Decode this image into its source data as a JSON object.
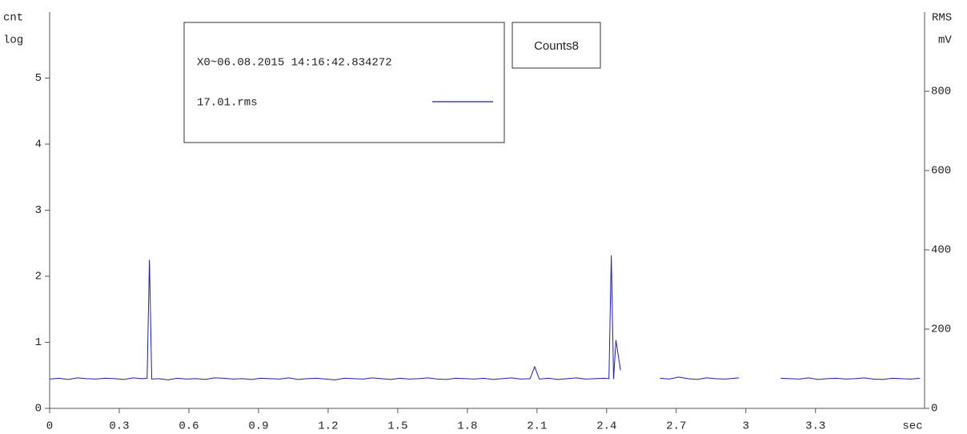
{
  "chart_data": {
    "type": "line",
    "title": "Counts8",
    "legend_title": "X0~06.08.2015 14:16:42.834272",
    "ylabel": [
      "cnt",
      "log"
    ],
    "y2label": [
      "RMS",
      "mV"
    ],
    "xlabel": "sec",
    "xlim": [
      0,
      3.77
    ],
    "xticks": [
      0,
      0.3,
      0.6,
      0.9,
      1.2,
      1.5,
      1.8,
      2.1,
      2.4,
      2.7,
      3,
      3.3
    ],
    "ylim": [
      0,
      6
    ],
    "yticks": [
      0,
      1,
      2,
      3,
      4,
      5
    ],
    "y2lim": [
      0,
      1000
    ],
    "y2ticks": [
      0,
      200,
      400,
      600,
      800
    ],
    "x": [
      0,
      0.04,
      0.08,
      0.12,
      0.16,
      0.2,
      0.24,
      0.28,
      0.32,
      0.36,
      0.4,
      0.42,
      0.43,
      0.44,
      0.47,
      0.51,
      0.55,
      0.59,
      0.63,
      0.67,
      0.71,
      0.75,
      0.79,
      0.83,
      0.87,
      0.91,
      0.95,
      0.99,
      1.03,
      1.07,
      1.11,
      1.15,
      1.19,
      1.23,
      1.27,
      1.31,
      1.35,
      1.39,
      1.43,
      1.47,
      1.51,
      1.55,
      1.59,
      1.63,
      1.67,
      1.71,
      1.75,
      1.79,
      1.83,
      1.87,
      1.91,
      1.95,
      1.99,
      2.03,
      2.07,
      2.09,
      2.11,
      2.15,
      2.19,
      2.23,
      2.27,
      2.31,
      2.35,
      2.39,
      2.41,
      2.42,
      2.43,
      2.44,
      2.46,
      2.55,
      2.63,
      2.67,
      2.71,
      2.75,
      2.79,
      2.83,
      2.87,
      2.91,
      2.95,
      2.97,
      3.06,
      3.15,
      3.19,
      3.23,
      3.27,
      3.31,
      3.35,
      3.39,
      3.43,
      3.47,
      3.51,
      3.55,
      3.59,
      3.63,
      3.67,
      3.71,
      3.75
    ],
    "series": [
      {
        "name": "17.01.rms",
        "color": "#1c1cc4",
        "axis": "y2",
        "values": [
          74,
          76,
          73,
          77,
          75,
          74,
          76,
          75,
          73,
          77,
          75,
          76,
          375,
          74,
          75,
          72,
          76,
          74,
          75,
          73,
          77,
          76,
          74,
          75,
          73,
          76,
          75,
          74,
          77,
          73,
          75,
          76,
          74,
          72,
          76,
          75,
          74,
          77,
          75,
          73,
          76,
          74,
          75,
          77,
          74,
          73,
          76,
          75,
          74,
          76,
          73,
          75,
          77,
          74,
          75,
          105,
          74,
          76,
          73,
          75,
          77,
          74,
          75,
          76,
          75,
          386,
          74,
          172,
          96,
          null,
          76,
          74,
          79,
          75,
          73,
          77,
          75,
          74,
          76,
          77,
          null,
          76,
          75,
          74,
          77,
          73,
          75,
          76,
          74,
          75,
          77,
          74,
          73,
          76,
          75,
          74,
          76
        ]
      }
    ]
  }
}
